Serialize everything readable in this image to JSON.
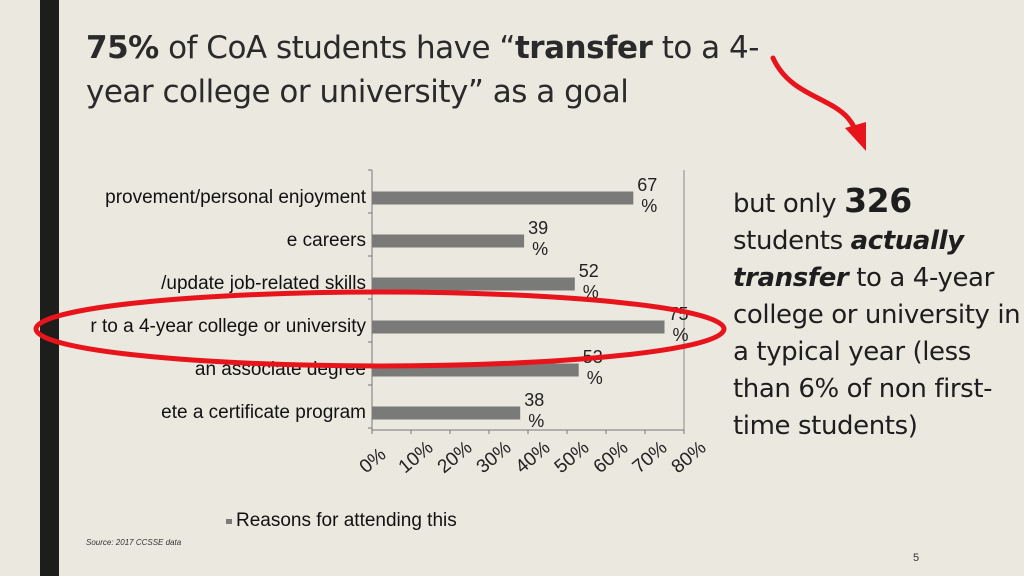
{
  "headline": {
    "percent": "75%",
    "part1": "of CoA students have “",
    "emphasis": "transfer",
    "part2": "to a 4-year college or university” as a goal"
  },
  "side_note": {
    "part1": "but only",
    "number": "326",
    "part2": "students",
    "emphasis1": "actually",
    "emphasis2": "transfer",
    "part3": "to a 4-year college or university in a typical year (less than 6% of non first-time students)"
  },
  "source": "Source: 2017 CCSSE data",
  "page_number": "5",
  "colors": {
    "bar": "#7a7a78",
    "highlight": "#e8141c",
    "sidebar": "#1d1d1b",
    "background": "#ebe8e0"
  },
  "chart_data": {
    "type": "bar",
    "orientation": "horizontal",
    "categories": [
      "provement/personal enjoyment",
      "e careers",
      "/update job-related skills",
      "r to a 4-year college or university",
      "an associate degree",
      "ete a certificate program"
    ],
    "values": [
      67,
      39,
      52,
      75,
      53,
      38
    ],
    "value_labels": [
      "67 %",
      "39 %",
      "52 %",
      "75 %",
      "53 %",
      "38 %"
    ],
    "xlim": [
      0,
      80
    ],
    "x_ticks": [
      "0%",
      "10%",
      "20%",
      "30%",
      "40%",
      "50%",
      "60%",
      "70%",
      "80%"
    ],
    "legend": "Reasons for attending this",
    "legend_position": "bottom",
    "highlighted_category_index": 3,
    "grid": false
  }
}
